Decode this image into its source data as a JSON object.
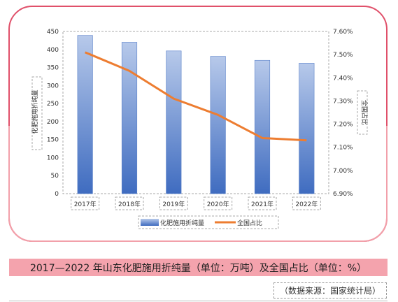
{
  "chart_data": {
    "type": "bar",
    "categories": [
      "2017年",
      "2018年",
      "2019年",
      "2020年",
      "2021年",
      "2022年"
    ],
    "series": [
      {
        "name": "化肥施用折纯量",
        "kind": "bar",
        "axis": "left",
        "values": [
          439,
          420,
          396,
          381,
          370,
          362
        ]
      },
      {
        "name": "全国占比",
        "kind": "line",
        "axis": "right",
        "values": [
          7.51,
          7.43,
          7.31,
          7.24,
          7.14,
          7.13
        ]
      }
    ],
    "ylabel": "化肥施用折纯量",
    "ylim": [
      0,
      450
    ],
    "yticks": [
      "0",
      "50",
      "100",
      "150",
      "200",
      "250",
      "300",
      "350",
      "400",
      "450"
    ],
    "y2label": "全国占比",
    "y2lim": [
      6.9,
      7.6
    ],
    "y2ticks": [
      "6.90%",
      "7.00%",
      "7.10%",
      "7.20%",
      "7.30%",
      "7.40%",
      "7.50%",
      "7.60%"
    ],
    "legend_position": "bottom",
    "colors": {
      "bar_top": "#b7c9ea",
      "bar_bottom": "#3f6cc0",
      "line": "#ed7d31",
      "frame": "#e0506a",
      "caption_bg": "#f4a3ad"
    }
  },
  "caption": "2017—2022 年山东化肥施用折纯量（单位：万吨）及全国占比（单位：%）",
  "source": "（数据来源：国家统计局）"
}
